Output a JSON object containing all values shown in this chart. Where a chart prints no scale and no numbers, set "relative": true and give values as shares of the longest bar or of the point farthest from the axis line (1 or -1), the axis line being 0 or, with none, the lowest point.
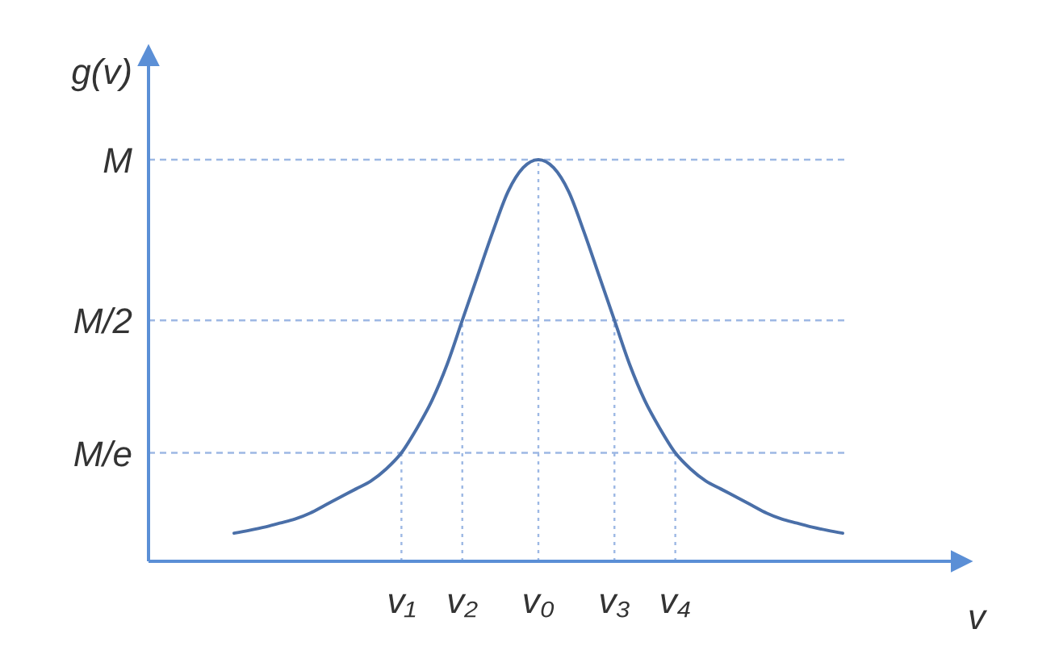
{
  "chart_data": {
    "type": "line",
    "xlabel": "v",
    "ylabel": "g(v)",
    "relative": true,
    "categories": [
      null,
      null,
      null,
      null,
      null,
      null,
      null,
      null,
      null,
      null,
      null,
      "v₁",
      null,
      null,
      null,
      "v₂",
      null,
      null,
      null,
      null,
      "v₀",
      null,
      null,
      null,
      null,
      "v₃",
      null,
      null,
      null,
      "v₄",
      null,
      null,
      null,
      null,
      null,
      null,
      null,
      null,
      null,
      null,
      null
    ],
    "marker": "none",
    "line_style": "solid",
    "series": [
      {
        "color": "#4a6fa8",
        "values": [
          0.07,
          0.077,
          0.085,
          0.095,
          0.105,
          0.12,
          0.14,
          0.16,
          0.18,
          0.2,
          0.23,
          0.27,
          0.33,
          0.4,
          0.49,
          0.6,
          0.71,
          0.82,
          0.92,
          0.98,
          1,
          0.98,
          0.92,
          0.82,
          0.71,
          0.6,
          0.49,
          0.4,
          0.33,
          0.27,
          0.23,
          0.2,
          0.18,
          0.16,
          0.14,
          0.12,
          0.105,
          0.095,
          0.085,
          0.077,
          0.07
        ]
      }
    ],
    "ref_lines": [
      {
        "axis": "y",
        "value": 1,
        "label": "M",
        "line_style": "dashed"
      },
      {
        "axis": "y",
        "value": 0.6,
        "label": "M/2",
        "line_style": "dashed"
      },
      {
        "axis": "y",
        "value": 0.27,
        "label": "M/e",
        "line_style": "dashed"
      }
    ]
  }
}
